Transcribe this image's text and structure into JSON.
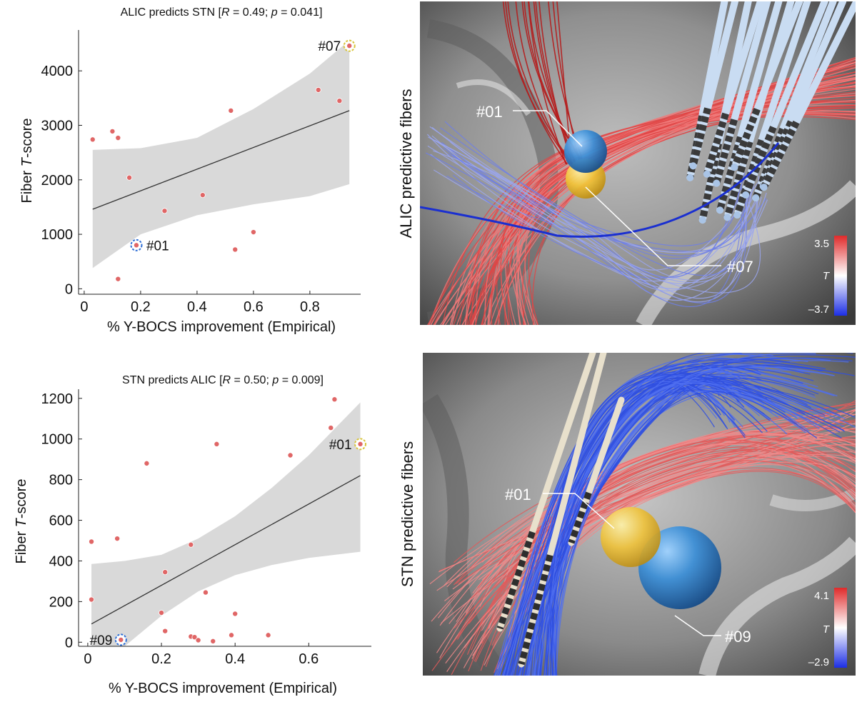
{
  "chart_data": [
    {
      "type": "scatter",
      "title": "ALIC predicts STN",
      "title_stats": {
        "r_label": "R",
        "r_value": "0.49",
        "p_label": "p",
        "p_value": "0.041"
      },
      "xlabel": "% Y-BOCS improvement (Empirical)",
      "ylabel_prefix": "Fiber ",
      "ylabel_italic": "T",
      "ylabel_suffix": "-score",
      "xlim": [
        -0.02,
        0.98
      ],
      "ylim": [
        -100,
        4750
      ],
      "xticks": [
        0,
        0.2,
        0.4,
        0.6,
        0.8
      ],
      "xtick_labels": [
        "0",
        "0.2",
        "0.4",
        "0.6",
        "0.8"
      ],
      "yticks": [
        0,
        1000,
        2000,
        3000,
        4000
      ],
      "ytick_labels": [
        "0",
        "1000",
        "2000",
        "3000",
        "4000"
      ],
      "points": [
        {
          "x": 0.03,
          "y": 2740
        },
        {
          "x": 0.1,
          "y": 2890
        },
        {
          "x": 0.12,
          "y": 2770
        },
        {
          "x": 0.16,
          "y": 2040
        },
        {
          "x": 0.12,
          "y": 180
        },
        {
          "x": 0.185,
          "y": 800
        },
        {
          "x": 0.285,
          "y": 1430
        },
        {
          "x": 0.42,
          "y": 1720
        },
        {
          "x": 0.52,
          "y": 3270
        },
        {
          "x": 0.535,
          "y": 720
        },
        {
          "x": 0.6,
          "y": 1040
        },
        {
          "x": 0.83,
          "y": 3650
        },
        {
          "x": 0.905,
          "y": 3450
        },
        {
          "x": 0.94,
          "y": 4460
        }
      ],
      "highlights": [
        {
          "label": "#01",
          "x": 0.185,
          "y": 800,
          "ring": "blue",
          "side": "right"
        },
        {
          "label": "#07",
          "x": 0.94,
          "y": 4460,
          "ring": "yellow",
          "side": "left"
        }
      ],
      "fit": {
        "x0": 0.03,
        "y0": 1460,
        "x1": 0.94,
        "y1": 3270
      },
      "ci_upper": [
        [
          0.03,
          2550
        ],
        [
          0.2,
          2580
        ],
        [
          0.4,
          2770
        ],
        [
          0.6,
          3300
        ],
        [
          0.8,
          3950
        ],
        [
          0.94,
          4560
        ]
      ],
      "ci_lower": [
        [
          0.03,
          380
        ],
        [
          0.2,
          1000
        ],
        [
          0.4,
          1350
        ],
        [
          0.6,
          1550
        ],
        [
          0.8,
          1700
        ],
        [
          0.94,
          1920
        ]
      ]
    },
    {
      "type": "scatter",
      "title": "STN predicts ALIC",
      "title_stats": {
        "r_label": "R",
        "r_value": "0.50",
        "p_label": "p",
        "p_value": "0.009"
      },
      "xlabel": "% Y-BOCS improvement (Empirical)",
      "ylabel_prefix": "Fiber ",
      "ylabel_italic": "T",
      "ylabel_suffix": "-score",
      "xlim": [
        -0.025,
        0.77
      ],
      "ylim": [
        -20,
        1245
      ],
      "xticks": [
        0,
        0.2,
        0.4,
        0.6
      ],
      "xtick_labels": [
        "0",
        "0.2",
        "0.4",
        "0.6"
      ],
      "yticks": [
        0,
        200,
        400,
        600,
        800,
        1000,
        1200
      ],
      "ytick_labels": [
        "0",
        "200",
        "400",
        "600",
        "800",
        "1000",
        "1200"
      ],
      "points": [
        {
          "x": 0.01,
          "y": 495
        },
        {
          "x": 0.01,
          "y": 210
        },
        {
          "x": 0.08,
          "y": 510
        },
        {
          "x": 0.09,
          "y": 12
        },
        {
          "x": 0.16,
          "y": 880
        },
        {
          "x": 0.2,
          "y": 145
        },
        {
          "x": 0.21,
          "y": 345
        },
        {
          "x": 0.21,
          "y": 55
        },
        {
          "x": 0.28,
          "y": 480
        },
        {
          "x": 0.28,
          "y": 28
        },
        {
          "x": 0.29,
          "y": 25
        },
        {
          "x": 0.3,
          "y": 10
        },
        {
          "x": 0.32,
          "y": 245
        },
        {
          "x": 0.34,
          "y": 5
        },
        {
          "x": 0.35,
          "y": 975
        },
        {
          "x": 0.39,
          "y": 35
        },
        {
          "x": 0.4,
          "y": 140
        },
        {
          "x": 0.49,
          "y": 35
        },
        {
          "x": 0.55,
          "y": 920
        },
        {
          "x": 0.66,
          "y": 1055
        },
        {
          "x": 0.67,
          "y": 1195
        },
        {
          "x": 0.74,
          "y": 975
        }
      ],
      "highlights": [
        {
          "label": "#01",
          "x": 0.74,
          "y": 975,
          "ring": "yellow",
          "side": "left"
        },
        {
          "label": "#09",
          "x": 0.09,
          "y": 12,
          "ring": "blue",
          "side": "left"
        }
      ],
      "fit": {
        "x0": 0.01,
        "y0": 90,
        "x1": 0.74,
        "y1": 820
      },
      "ci_upper": [
        [
          0.01,
          385
        ],
        [
          0.1,
          400
        ],
        [
          0.2,
          430
        ],
        [
          0.3,
          510
        ],
        [
          0.4,
          620
        ],
        [
          0.5,
          760
        ],
        [
          0.6,
          920
        ],
        [
          0.74,
          1180
        ]
      ],
      "ci_lower": [
        [
          0.01,
          -20
        ],
        [
          0.1,
          -20
        ],
        [
          0.2,
          130
        ],
        [
          0.3,
          250
        ],
        [
          0.4,
          330
        ],
        [
          0.5,
          380
        ],
        [
          0.6,
          415
        ],
        [
          0.74,
          445
        ]
      ]
    }
  ],
  "panels": [
    {
      "vertical_label": "ALIC predictive fibers",
      "callouts": [
        "#01",
        "#07"
      ],
      "colorbar": {
        "max": "3.5",
        "min": "–3.7",
        "var": "T"
      }
    },
    {
      "vertical_label": "STN predictive fibers",
      "callouts": [
        "#01",
        "#09"
      ],
      "colorbar": {
        "max": "4.1",
        "min": "–2.9",
        "var": "T"
      }
    }
  ],
  "colors": {
    "point_fill": "#e06666",
    "ci_fill": "#d9d9d9",
    "fit_line": "#333333",
    "ring_blue": "#2f6fd6",
    "ring_yellow": "#d8c43a",
    "positive_fibers": "#d63a3a",
    "negative_fibers": "#2c4fd8"
  }
}
